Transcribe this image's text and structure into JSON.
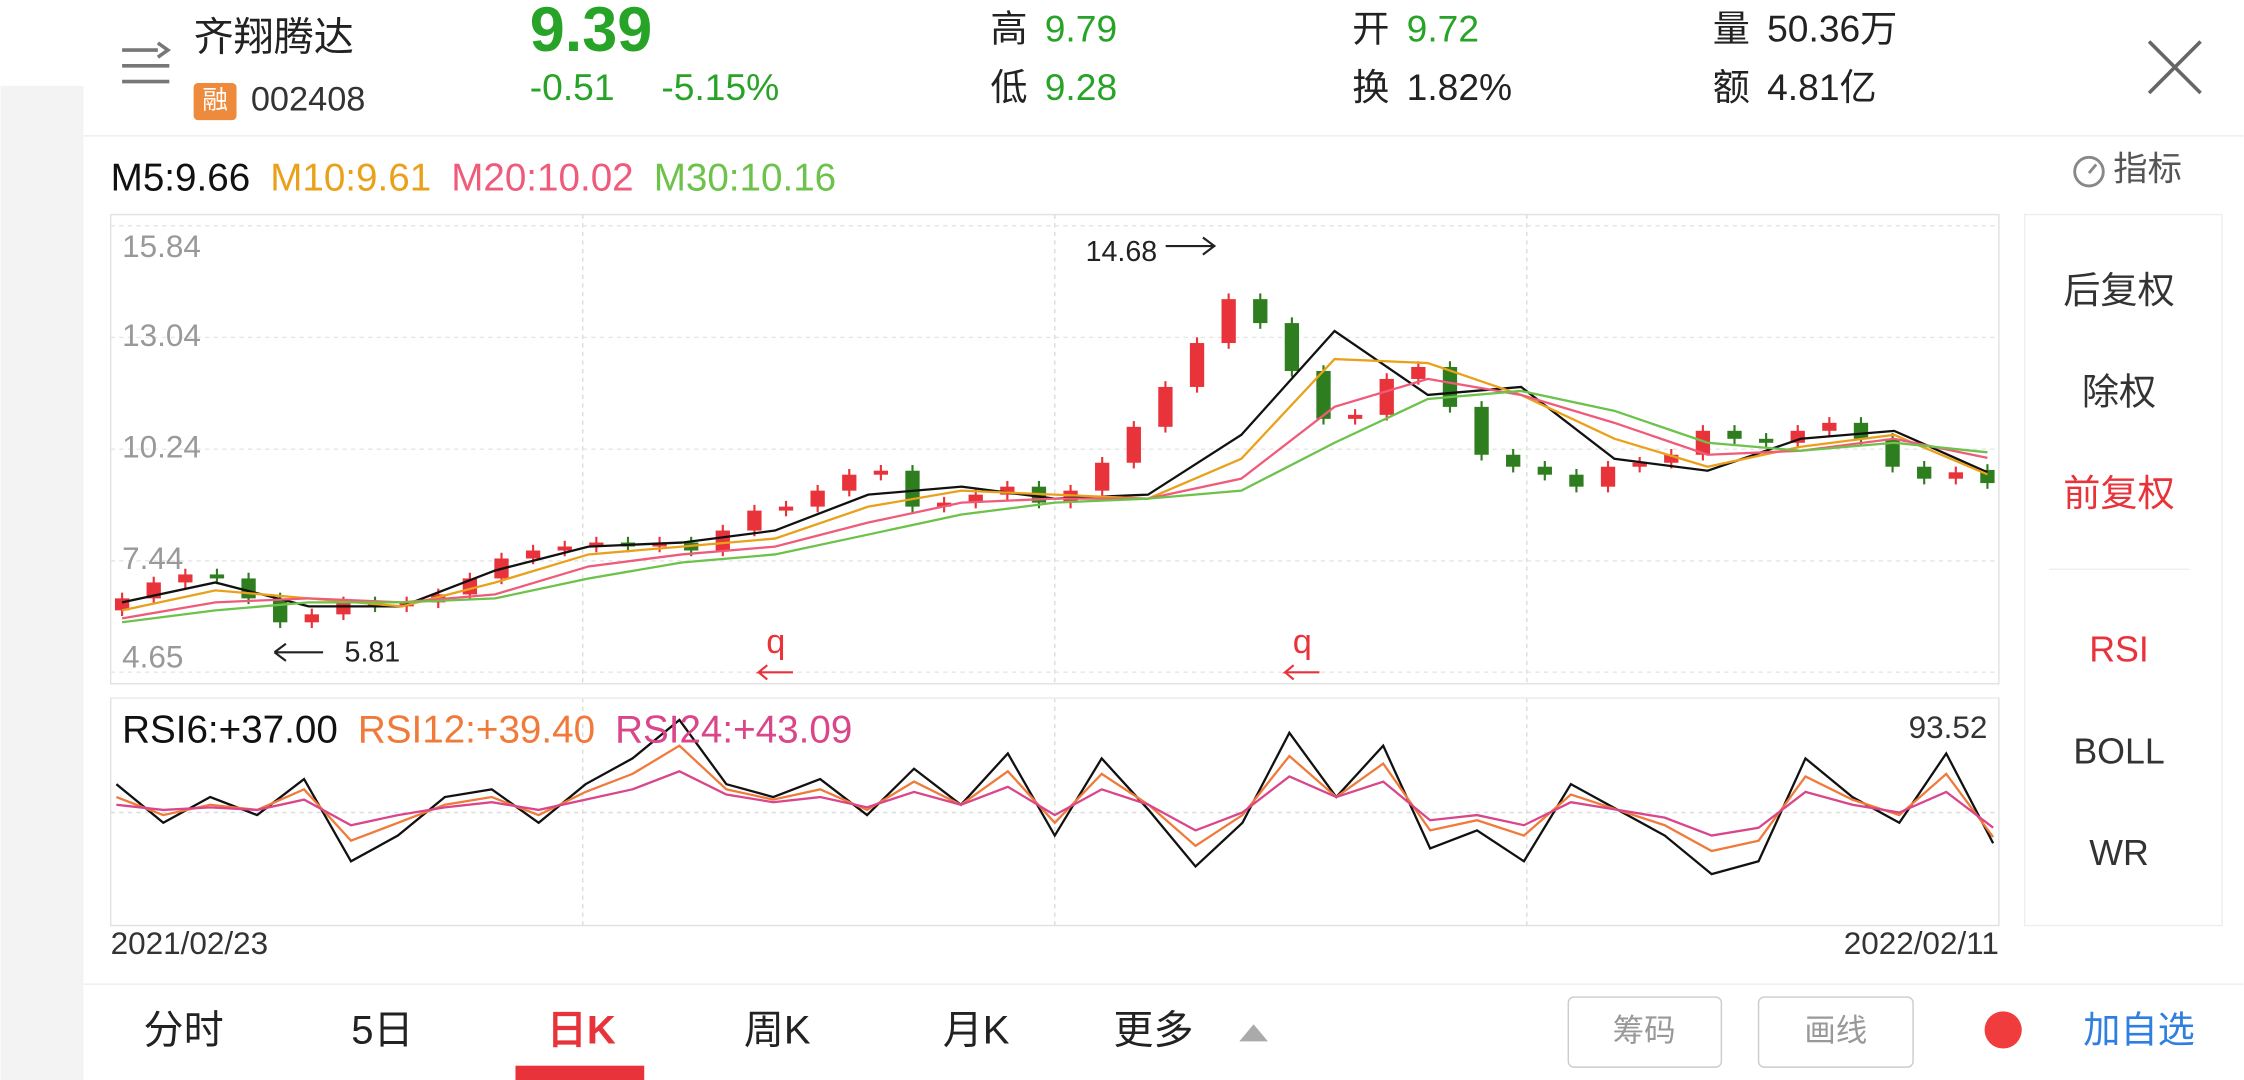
{
  "header": {
    "name": "齐翔腾达",
    "badge": "融",
    "code": "002408",
    "price": "9.39",
    "change": "-0.51",
    "change_pct": "-5.15%",
    "stats": [
      {
        "label": "高",
        "value": "9.79"
      },
      {
        "label": "低",
        "value": "9.28"
      },
      {
        "label": "开",
        "value": "9.72"
      },
      {
        "label": "换",
        "value": "1.82%"
      },
      {
        "label": "量",
        "value": "50.36万"
      },
      {
        "label": "额",
        "value": "4.81亿"
      }
    ],
    "indicator_button": "指标"
  },
  "chart_data": [
    {
      "type": "candlestick",
      "open": [
        6.2,
        6.5,
        6.9,
        7.1,
        7.0,
        6.5,
        5.9,
        6.1,
        6.4,
        6.3,
        6.4,
        6.6,
        7.0,
        7.5,
        7.7,
        7.8,
        7.9,
        7.8,
        7.9,
        7.7,
        8.2,
        8.7,
        8.8,
        9.2,
        9.6,
        9.7,
        8.8,
        8.9,
        9.1,
        9.3,
        8.9,
        9.2,
        9.9,
        10.8,
        11.8,
        12.9,
        14.0,
        13.4,
        12.2,
        11.0,
        11.1,
        12.0,
        12.3,
        11.3,
        10.1,
        9.8,
        9.6,
        9.3,
        9.8,
        9.9,
        10.1,
        10.7,
        10.5,
        10.4,
        10.7,
        10.9,
        10.5,
        9.8,
        9.5,
        9.72
      ],
      "close": [
        6.5,
        6.9,
        7.1,
        7.0,
        6.5,
        5.9,
        6.1,
        6.4,
        6.3,
        6.4,
        6.6,
        7.0,
        7.5,
        7.7,
        7.8,
        7.9,
        7.8,
        7.9,
        7.7,
        8.2,
        8.7,
        8.8,
        9.2,
        9.6,
        9.7,
        8.8,
        8.9,
        9.1,
        9.3,
        8.9,
        9.2,
        9.9,
        10.8,
        11.8,
        12.9,
        14.0,
        13.4,
        12.2,
        11.0,
        11.1,
        12.0,
        12.3,
        11.3,
        10.1,
        9.8,
        9.6,
        9.3,
        9.8,
        9.9,
        10.1,
        10.7,
        10.5,
        10.4,
        10.7,
        10.9,
        10.5,
        9.8,
        9.5,
        9.66,
        9.39
      ],
      "series": [
        {
          "name": "M5:9.66",
          "color": "#111111",
          "values": [
            6.4,
            6.9,
            6.3,
            6.3,
            7.2,
            7.8,
            7.9,
            8.2,
            9.1,
            9.3,
            9.0,
            9.1,
            10.6,
            13.2,
            11.6,
            11.8,
            10.0,
            9.7,
            10.5,
            10.7,
            9.66
          ]
        },
        {
          "name": "M10:9.61",
          "color": "#e9a11b",
          "values": [
            6.2,
            6.7,
            6.5,
            6.3,
            6.9,
            7.6,
            7.8,
            8.0,
            8.8,
            9.2,
            9.1,
            9.0,
            10.0,
            12.5,
            12.4,
            11.6,
            10.5,
            9.8,
            10.3,
            10.6,
            9.61
          ]
        },
        {
          "name": "M20:10.02",
          "color": "#ef5b7a",
          "values": [
            6.0,
            6.4,
            6.5,
            6.4,
            6.6,
            7.3,
            7.6,
            7.8,
            8.4,
            8.9,
            9.0,
            9.0,
            9.5,
            11.3,
            12.0,
            11.6,
            10.9,
            10.1,
            10.2,
            10.5,
            10.02
          ]
        },
        {
          "name": "M30:10.16",
          "color": "#6cc24a",
          "values": [
            5.9,
            6.2,
            6.4,
            6.4,
            6.5,
            7.0,
            7.4,
            7.6,
            8.1,
            8.6,
            8.9,
            9.0,
            9.2,
            10.4,
            11.5,
            11.7,
            11.2,
            10.4,
            10.2,
            10.4,
            10.16
          ]
        }
      ],
      "ylim": [
        4.36,
        16.12
      ],
      "yticks": [
        15.84,
        13.04,
        10.24,
        7.44,
        4.65
      ],
      "high_label": "14.68",
      "low_label": "5.81",
      "markers": [
        "q",
        "q"
      ]
    },
    {
      "type": "line",
      "series": [
        {
          "name": "RSI6:+37.00",
          "color": "#111111",
          "values": [
            60,
            45,
            55,
            48,
            62,
            30,
            40,
            55,
            58,
            45,
            60,
            70,
            85,
            60,
            55,
            62,
            48,
            66,
            52,
            72,
            40,
            70,
            50,
            28,
            45,
            80,
            55,
            75,
            35,
            42,
            30,
            60,
            50,
            40,
            25,
            30,
            70,
            55,
            45,
            72,
            37
          ]
        },
        {
          "name": "RSI12:+39.40",
          "color": "#f07a3a",
          "values": [
            55,
            48,
            52,
            50,
            58,
            38,
            45,
            52,
            55,
            48,
            57,
            64,
            75,
            58,
            54,
            58,
            50,
            61,
            52,
            65,
            45,
            64,
            52,
            36,
            48,
            71,
            55,
            68,
            42,
            46,
            40,
            56,
            50,
            44,
            34,
            38,
            63,
            54,
            48,
            64,
            39.4
          ]
        },
        {
          "name": "RSI24:+43.09",
          "color": "#d9468a",
          "values": [
            52,
            50,
            51,
            50,
            54,
            44,
            48,
            51,
            53,
            50,
            54,
            58,
            65,
            56,
            53,
            55,
            51,
            57,
            52,
            59,
            48,
            58,
            52,
            42,
            49,
            63,
            55,
            61,
            46,
            48,
            44,
            53,
            50,
            47,
            40,
            43,
            57,
            52,
            49,
            57,
            43.09
          ]
        }
      ],
      "ylim": [
        5,
        93.52
      ],
      "yticks": [
        93.52
      ],
      "date_range": [
        "2021/02/23",
        "2022/02/11"
      ]
    }
  ],
  "side": {
    "adjust": [
      "后复权",
      "除权",
      "前复权"
    ],
    "indicators": [
      "RSI",
      "BOLL",
      "WR"
    ]
  },
  "tabs": {
    "items": [
      "分时",
      "5日",
      "日K",
      "周K",
      "月K",
      "更多"
    ],
    "buttons": [
      "筹码",
      "画线"
    ],
    "add": "加自选"
  }
}
